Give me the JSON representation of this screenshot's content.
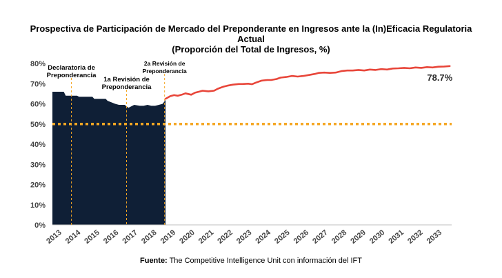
{
  "chart_data": {
    "type": "area+line",
    "title_lines": [
      "Prospectiva de Participación de Mercado del Preponderante en Ingresos ante la (In)Eficacia Regulatoria",
      "Actual",
      "(Proporción del Total de Ingresos, %)"
    ],
    "ylim": [
      0,
      80
    ],
    "y_ticks": [
      "0%",
      "10%",
      "20%",
      "30%",
      "40%",
      "50%",
      "60%",
      "70%",
      "80%"
    ],
    "x_ticks": [
      "2013",
      "2014",
      "2015",
      "2016",
      "2017",
      "2018",
      "2019",
      "2020",
      "2021",
      "2022",
      "2023",
      "2024",
      "2025",
      "2026",
      "2027",
      "2028",
      "2029",
      "2030",
      "2031",
      "2032",
      "2033"
    ],
    "historical": {
      "color": "#0f1f36",
      "x": [
        2013.0,
        2013.6,
        2013.7,
        2014.3,
        2014.4,
        2015.1,
        2015.2,
        2015.8,
        2015.9,
        2016.3,
        2016.5,
        2016.8,
        2017.0,
        2017.1,
        2017.3,
        2017.6,
        2017.8,
        2018.0,
        2018.2,
        2018.4,
        2018.6,
        2018.8,
        2018.95
      ],
      "y": [
        66,
        66,
        64,
        64,
        63.5,
        63.5,
        62.5,
        62.5,
        61.5,
        60,
        59.5,
        59.5,
        58,
        58.5,
        59.5,
        59,
        59,
        59.5,
        59,
        59,
        59.5,
        60,
        62
      ]
    },
    "projection": {
      "color": "#e8463a",
      "x": [
        2018.95,
        2019.2,
        2019.4,
        2019.6,
        2019.8,
        2020.0,
        2020.3,
        2020.5,
        2020.7,
        2020.9,
        2021.2,
        2021.5,
        2021.7,
        2022.0,
        2022.2,
        2022.5,
        2022.8,
        2023.0,
        2023.3,
        2023.5,
        2023.7,
        2024.0,
        2024.3,
        2024.5,
        2024.8,
        2025.0,
        2025.3,
        2025.6,
        2025.9,
        2026.2,
        2026.5,
        2026.8,
        2027.0,
        2027.3,
        2027.6,
        2027.9,
        2028.2,
        2028.5,
        2028.8,
        2029.1,
        2029.4,
        2029.7,
        2030.0,
        2030.3,
        2030.6,
        2030.9,
        2031.2,
        2031.5,
        2031.8,
        2032.1,
        2032.4,
        2032.7,
        2033.0,
        2033.3,
        2033.6,
        2033.9
      ],
      "y": [
        62.5,
        63.8,
        64.3,
        64.0,
        64.5,
        65.2,
        64.5,
        65.5,
        66.0,
        66.5,
        66.2,
        66.5,
        67.5,
        68.5,
        69.0,
        69.5,
        69.8,
        69.8,
        70.0,
        69.7,
        70.5,
        71.5,
        71.8,
        71.8,
        72.3,
        73.0,
        73.3,
        73.8,
        73.5,
        73.8,
        74.3,
        74.8,
        75.3,
        75.5,
        75.3,
        75.5,
        76.2,
        76.5,
        76.5,
        76.8,
        76.5,
        77.0,
        76.8,
        77.2,
        77.0,
        77.5,
        77.6,
        77.8,
        77.6,
        78.0,
        77.8,
        78.2,
        78.0,
        78.4,
        78.5,
        78.7
      ]
    },
    "end_label": "78.7%",
    "threshold": {
      "value": 50,
      "color": "#f5a623"
    },
    "annotations": [
      {
        "label_lines": [
          "Declaratoria de",
          "Preponderancia"
        ],
        "x": 2014.0
      },
      {
        "label_lines": [
          "1a Revisión de",
          "Preponderancia"
        ],
        "x": 2016.9
      },
      {
        "label_lines": [
          "2a Revisión de",
          "Preponderancia"
        ],
        "x": 2018.9
      }
    ],
    "source_bold": "Fuente:",
    "source_text": " The Competitive Intelligence Unit con información del IFT"
  }
}
